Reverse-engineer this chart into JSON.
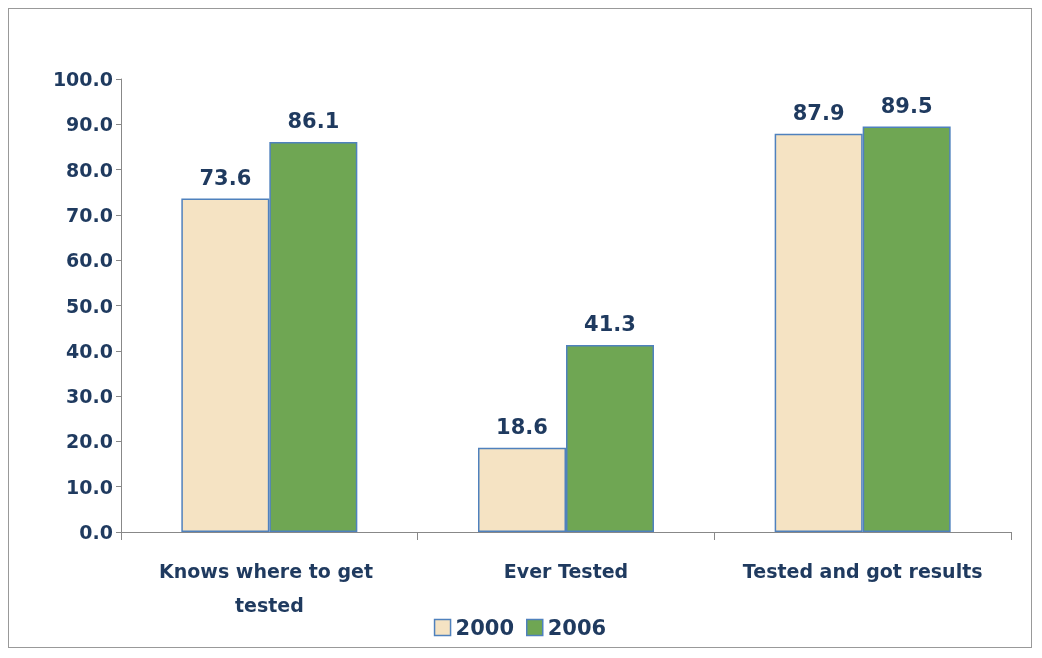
{
  "chart_data": {
    "type": "bar",
    "categories": [
      "Knows where to get tested",
      "Ever Tested",
      "Tested and got results"
    ],
    "series": [
      {
        "name": "2000",
        "color": "#f5e3c3",
        "values": [
          73.6,
          18.6,
          87.9
        ]
      },
      {
        "name": "2006",
        "color": "#6fa653",
        "values": [
          86.1,
          41.3,
          89.5
        ]
      }
    ],
    "ylim": [
      0,
      100
    ],
    "yticks": [
      {
        "value": 0,
        "label": "0.0"
      },
      {
        "value": 10,
        "label": "10.0"
      },
      {
        "value": 20,
        "label": "20.0"
      },
      {
        "value": 30,
        "label": "30.0"
      },
      {
        "value": 40,
        "label": "40.0"
      },
      {
        "value": 50,
        "label": "50.0"
      },
      {
        "value": 60,
        "label": "60.0"
      },
      {
        "value": 70,
        "label": "70.0"
      },
      {
        "value": 80,
        "label": "80.0"
      },
      {
        "value": 90,
        "label": "90.0"
      },
      {
        "value": 100,
        "label": "100.0"
      }
    ],
    "data_labels": true,
    "grid": false,
    "legend": "bottom"
  }
}
